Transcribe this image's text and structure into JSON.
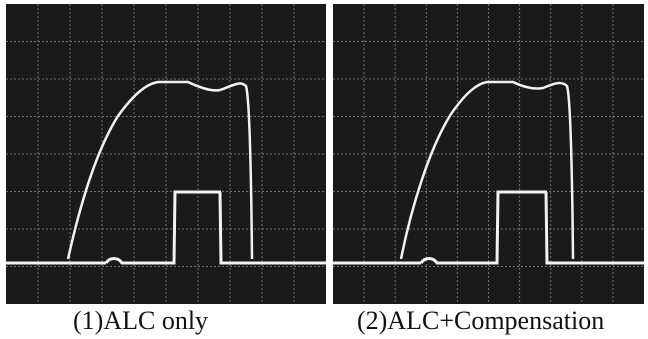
{
  "panels": [
    {
      "caption": "(1)ALC only"
    },
    {
      "caption": "(2)ALC+Compensation"
    }
  ],
  "colors": {
    "screen_background": "#1a1a1a",
    "grid": "#8a8a8a",
    "trace": "#f2f2f2"
  }
}
